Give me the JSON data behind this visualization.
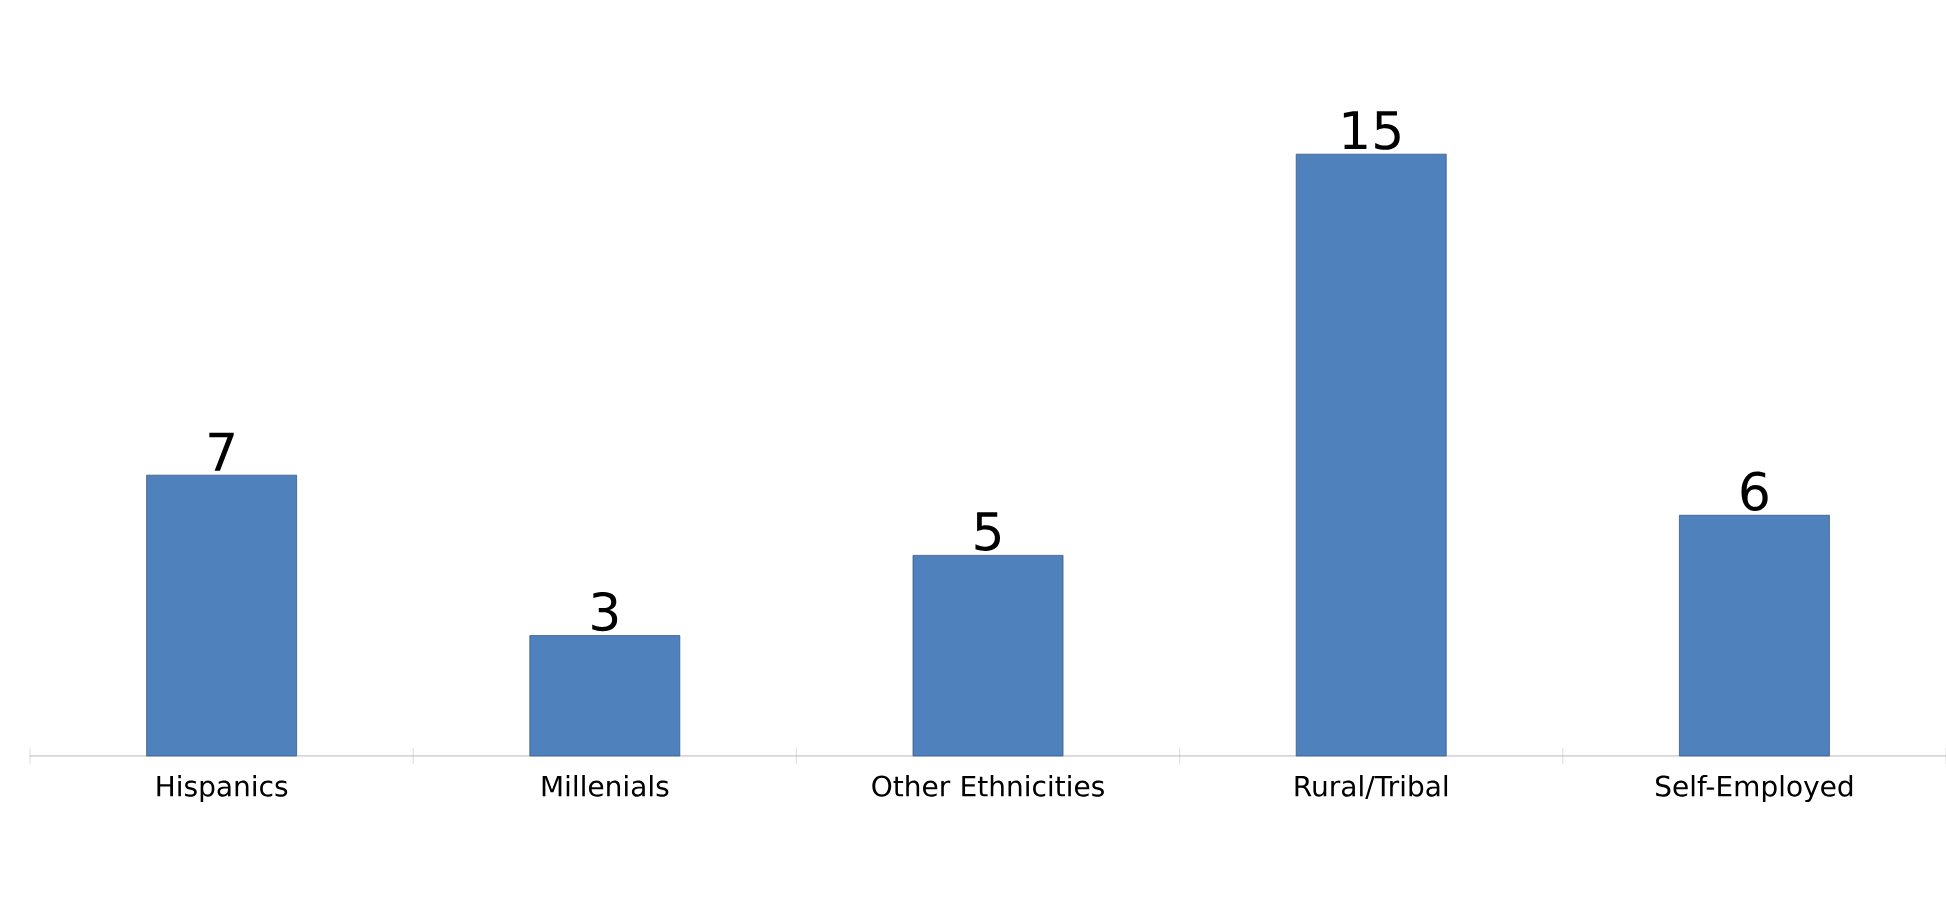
{
  "chart_data": {
    "type": "bar",
    "categories": [
      "Hispanics",
      "Millenials",
      "Other Ethnicities",
      "Rural/Tribal",
      "Self-Employed"
    ],
    "values": [
      7,
      3,
      5,
      15,
      6
    ],
    "color": "#4f81bd",
    "data_labels": true
  }
}
